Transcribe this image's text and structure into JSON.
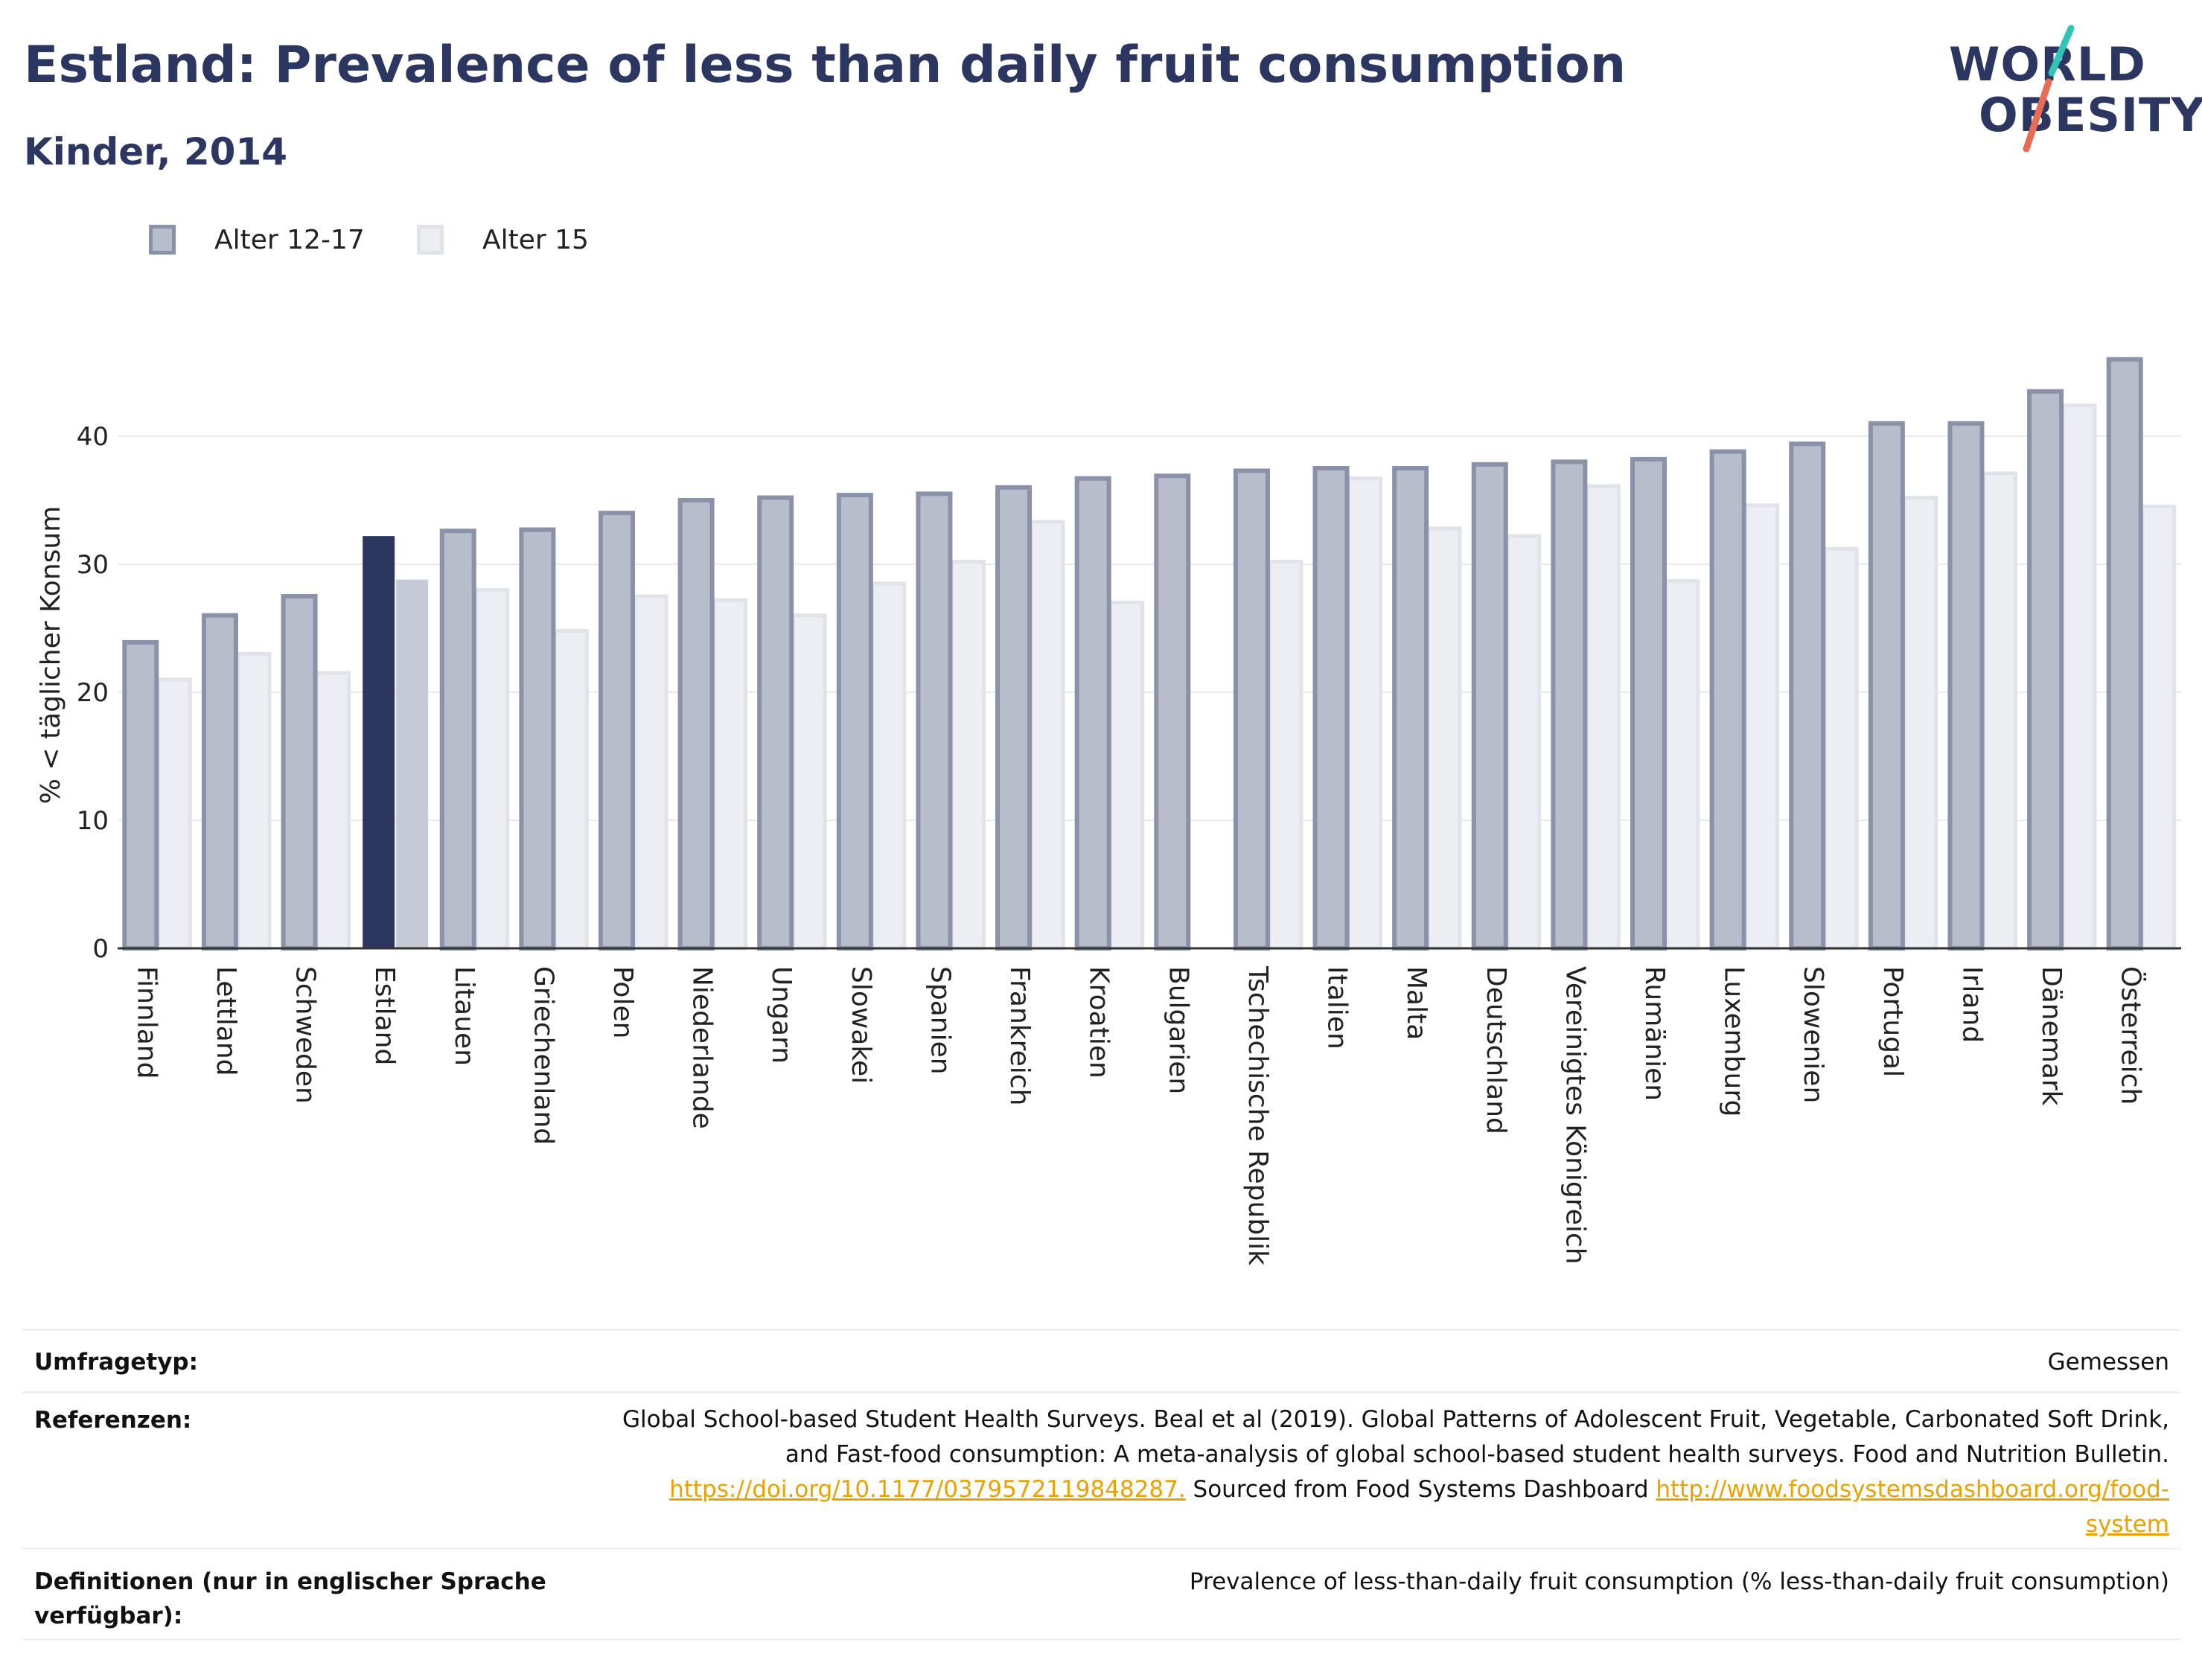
{
  "header": {
    "title": "Estland: Prevalence of less than daily fruit consumption",
    "subtitle": "Kinder, 2014"
  },
  "logo": {
    "line1": "WORLD",
    "line2": "OBESITY",
    "colors": {
      "text": "#2b3661",
      "slash_top": "#2ec4b6",
      "slash_bottom": "#e96b55"
    }
  },
  "legend": {
    "items": [
      {
        "label": "Alter 12-17",
        "color": "#b8bdcc"
      },
      {
        "label": "Alter 15",
        "color": "#eceef3"
      }
    ]
  },
  "chart_data": {
    "type": "bar",
    "ylabel": "% < täglicher Konsum",
    "ylim": [
      0,
      48
    ],
    "yticks": [
      0,
      10,
      20,
      30,
      40
    ],
    "grid": true,
    "highlight": "Estland",
    "categories": [
      "Finnland",
      "Lettland",
      "Schweden",
      "Estland",
      "Litauen",
      "Griechenland",
      "Polen",
      "Niederlande",
      "Ungarn",
      "Slowakei",
      "Spanien",
      "Frankreich",
      "Kroatien",
      "Bulgarien",
      "Tschechische Republik",
      "Italien",
      "Malta",
      "Deutschland",
      "Vereinigtes Königreich",
      "Rumänien",
      "Luxemburg",
      "Slowenien",
      "Portugal",
      "Irland",
      "Dänemark",
      "Österreich"
    ],
    "series": [
      {
        "name": "Alter 12-17",
        "values": [
          23.9,
          26.0,
          27.5,
          32.2,
          32.6,
          32.7,
          34.0,
          35.0,
          35.2,
          35.4,
          35.5,
          36.0,
          36.7,
          36.9,
          37.3,
          37.5,
          37.5,
          37.8,
          38.0,
          38.2,
          38.8,
          39.4,
          41.0,
          41.0,
          43.5,
          46.0
        ]
      },
      {
        "name": "Alter 15",
        "values": [
          21.0,
          23.0,
          21.5,
          28.8,
          28.0,
          24.8,
          27.5,
          27.2,
          26.0,
          28.5,
          30.2,
          33.3,
          27.0,
          null,
          30.2,
          36.7,
          32.8,
          32.2,
          36.1,
          28.7,
          34.6,
          31.2,
          35.2,
          37.1,
          42.4,
          34.5
        ]
      }
    ],
    "colors": {
      "primary_fill": "#b8bdcc",
      "primary_stroke": "#8a91a8",
      "secondary_fill": "#eceef3",
      "secondary_stroke": "#e0e3ea",
      "highlight_primary": "#2b3661",
      "highlight_secondary": "#c6c9d6"
    }
  },
  "footer": {
    "survey_label": "Umfragetyp:",
    "survey_value": "Gemessen",
    "ref_label": "Referenzen:",
    "ref_line1": "Global School-based Student Health Surveys. Beal et al (2019). Global Patterns of Adolescent Fruit, Vegetable, Carbonated Soft Drink,",
    "ref_line2": "and Fast-food consumption: A meta-analysis of global school-based student health surveys. Food and Nutrition Bulletin.",
    "ref_link1": "https://doi.org/10.1177/0379572119848287.",
    "ref_sourced": " Sourced from Food Systems Dashboard ",
    "ref_link2a": "http://www.foodsystemsdashboard.org/food-",
    "ref_link2b": "system",
    "def_label_line1": "Definitionen (nur in englischer Sprache",
    "def_label_line2": "verfügbar):",
    "def_value": "Prevalence of less-than-daily fruit consumption (% less-than-daily fruit consumption)"
  }
}
